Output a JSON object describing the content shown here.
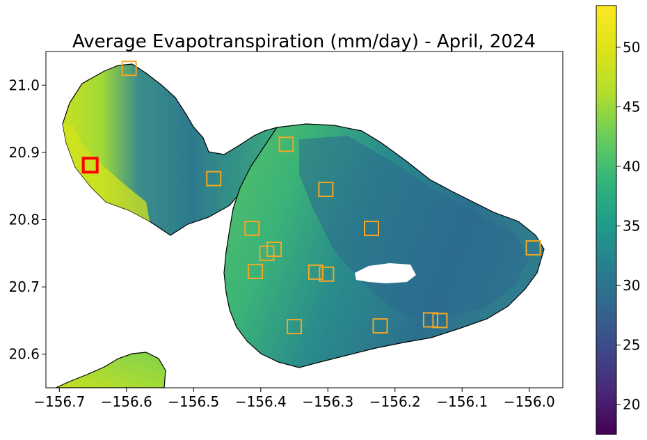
{
  "title": "Average Evapotranspiration (mm/day) - April, 2024",
  "colormap": "viridis",
  "colors": {
    "island_outline": "#000000",
    "station_marker": "#f5a623",
    "highlight_marker": "#ff0000",
    "no_data": "#ffffff"
  },
  "chart_data": {
    "type": "heatmap",
    "title": "Average Evapotranspiration (mm/day) - April, 2024",
    "xlim": [
      -156.72,
      -155.95
    ],
    "ylim": [
      20.55,
      21.05
    ],
    "x_ticks": [
      {
        "value": -156.7,
        "label": "−156.7"
      },
      {
        "value": -156.6,
        "label": "−156.6"
      },
      {
        "value": -156.5,
        "label": "−156.5"
      },
      {
        "value": -156.4,
        "label": "−156.4"
      },
      {
        "value": -156.3,
        "label": "−156.3"
      },
      {
        "value": -156.2,
        "label": "−156.2"
      },
      {
        "value": -156.1,
        "label": "−156.1"
      },
      {
        "value": -156.0,
        "label": "−156.0"
      }
    ],
    "y_ticks": [
      {
        "value": 20.6,
        "label": "20.6"
      },
      {
        "value": 20.7,
        "label": "20.7"
      },
      {
        "value": 20.8,
        "label": "20.8"
      },
      {
        "value": 20.9,
        "label": "20.9"
      },
      {
        "value": 21.0,
        "label": "21.0"
      }
    ],
    "colorbar": {
      "range": [
        17.5,
        53.5
      ],
      "ticks": [
        {
          "value": 20,
          "label": "20"
        },
        {
          "value": 25,
          "label": "25"
        },
        {
          "value": 30,
          "label": "30"
        },
        {
          "value": 35,
          "label": "35"
        },
        {
          "value": 40,
          "label": "40"
        },
        {
          "value": 45,
          "label": "45"
        },
        {
          "value": 50,
          "label": "50"
        }
      ]
    },
    "stations": [
      {
        "lon": -156.596,
        "lat": 21.025
      },
      {
        "lon": -156.362,
        "lat": 20.912
      },
      {
        "lon": -156.47,
        "lat": 20.861
      },
      {
        "lon": -156.303,
        "lat": 20.845
      },
      {
        "lon": -156.413,
        "lat": 20.787
      },
      {
        "lon": -156.235,
        "lat": 20.787
      },
      {
        "lon": -156.38,
        "lat": 20.756
      },
      {
        "lon": -156.391,
        "lat": 20.75
      },
      {
        "lon": -156.408,
        "lat": 20.723
      },
      {
        "lon": -156.318,
        "lat": 20.722
      },
      {
        "lon": -156.302,
        "lat": 20.719
      },
      {
        "lon": -156.35,
        "lat": 20.641
      },
      {
        "lon": -156.222,
        "lat": 20.642
      },
      {
        "lon": -156.147,
        "lat": 20.651
      },
      {
        "lon": -156.133,
        "lat": 20.65
      },
      {
        "lon": -155.994,
        "lat": 20.758
      }
    ],
    "highlighted_station": {
      "lon": -156.654,
      "lat": 20.881
    }
  }
}
